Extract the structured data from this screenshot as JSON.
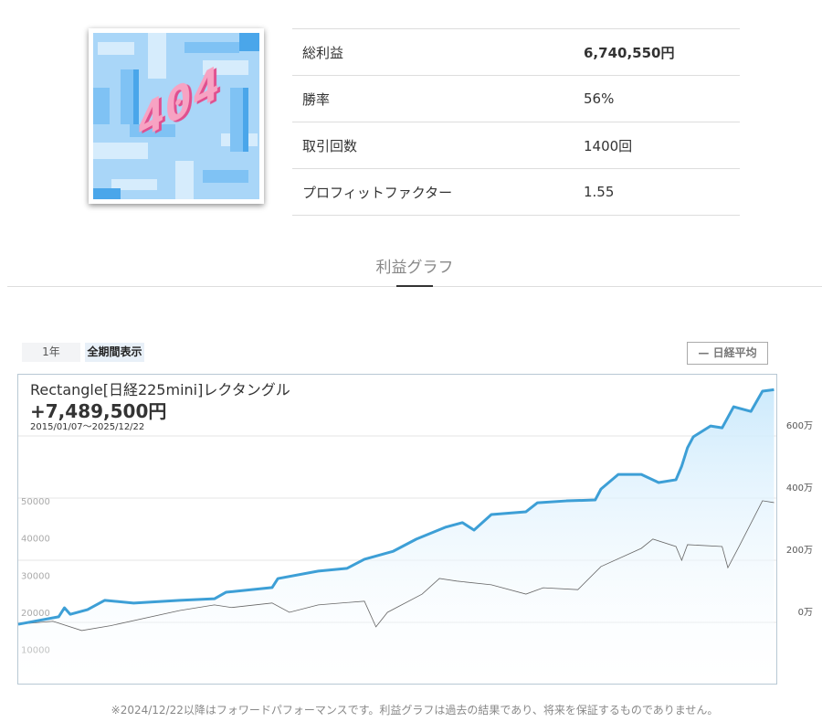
{
  "thumbnail": {
    "logo_text": "404",
    "colors": {
      "bg": "#a9d6f8",
      "block_light": "#d6ecfc",
      "block_mid": "#7fc2f4",
      "block_dark": "#4aa6ea",
      "pink": "#e0508f",
      "pink_light": "#f7a3c3"
    }
  },
  "stats": [
    {
      "label": "総利益",
      "value": "6,740,550円",
      "bold": true
    },
    {
      "label": "勝率",
      "value": "56%"
    },
    {
      "label": "取引回数",
      "value": "1400回"
    },
    {
      "label": "プロフィットファクター",
      "value": "1.55"
    }
  ],
  "section_title": "利益グラフ",
  "tabs": [
    {
      "label": "1年",
      "active": false
    },
    {
      "label": "全期間表示",
      "active": true
    }
  ],
  "legend_toggle": "— 日経平均",
  "chart_header": {
    "title": "Rectangle[日経225mini]レクタングル",
    "total": "+7,489,500円",
    "range": "2015/01/07～2025/12/22"
  },
  "chart_data": {
    "type": "area",
    "grid": true,
    "right_axis": {
      "ticks": [
        0,
        200,
        400,
        600
      ],
      "labels": [
        "0万",
        "200万",
        "400万",
        "600万"
      ]
    },
    "left_axis": {
      "ticks": [
        10000,
        20000,
        30000,
        40000,
        50000
      ],
      "labels": [
        "10000",
        "20000",
        "30000",
        "40000",
        "50000"
      ]
    },
    "series": [
      {
        "axis": "right",
        "color": "#3d9fd6",
        "fill": "#cdeafc",
        "points": [
          [
            "2015-01",
            -6
          ],
          [
            "2015-08",
            18
          ],
          [
            "2015-09",
            47
          ],
          [
            "2015-10",
            26
          ],
          [
            "2016-01",
            41
          ],
          [
            "2016-04",
            71
          ],
          [
            "2016-09",
            62
          ],
          [
            "2017-05",
            71
          ],
          [
            "2017-11",
            76
          ],
          [
            "2018-01",
            97
          ],
          [
            "2018-09",
            112
          ],
          [
            "2018-10",
            141
          ],
          [
            "2019-05",
            165
          ],
          [
            "2019-10",
            174
          ],
          [
            "2020-01",
            203
          ],
          [
            "2020-06",
            229
          ],
          [
            "2020-10",
            268
          ],
          [
            "2021-03",
            306
          ],
          [
            "2021-06",
            321
          ],
          [
            "2021-08",
            297
          ],
          [
            "2021-11",
            347
          ],
          [
            "2022-05",
            356
          ],
          [
            "2022-07",
            385
          ],
          [
            "2022-12",
            391
          ],
          [
            "2023-05",
            394
          ],
          [
            "2023-06",
            429
          ],
          [
            "2023-09",
            476
          ],
          [
            "2024-01",
            476
          ],
          [
            "2024-04",
            450
          ],
          [
            "2024-07",
            459
          ],
          [
            "2024-08",
            503
          ],
          [
            "2024-09",
            562
          ],
          [
            "2024-10",
            597
          ],
          [
            "2025-01",
            632
          ],
          [
            "2025-03",
            626
          ],
          [
            "2025-05",
            694
          ],
          [
            "2025-08",
            679
          ],
          [
            "2025-10",
            744
          ],
          [
            "2025-12",
            749
          ]
        ]
      },
      {
        "name": "日経平均",
        "axis": "left",
        "color": "#666666",
        "points": [
          [
            "2015-01",
            16800
          ],
          [
            "2015-07",
            17600
          ],
          [
            "2015-12",
            15100
          ],
          [
            "2016-05",
            16400
          ],
          [
            "2017-05",
            20500
          ],
          [
            "2017-11",
            22000
          ],
          [
            "2018-02",
            21300
          ],
          [
            "2018-09",
            22500
          ],
          [
            "2018-12",
            20000
          ],
          [
            "2019-05",
            22000
          ],
          [
            "2020-01",
            23000
          ],
          [
            "2020-03",
            16100
          ],
          [
            "2020-05",
            20000
          ],
          [
            "2020-11",
            24900
          ],
          [
            "2021-02",
            29100
          ],
          [
            "2021-05",
            28400
          ],
          [
            "2021-11",
            27400
          ],
          [
            "2022-05",
            24900
          ],
          [
            "2022-08",
            26600
          ],
          [
            "2023-02",
            26100
          ],
          [
            "2023-06",
            32300
          ],
          [
            "2024-01",
            37200
          ],
          [
            "2024-03",
            39700
          ],
          [
            "2024-07",
            37700
          ],
          [
            "2024-08",
            34000
          ],
          [
            "2024-09",
            38200
          ],
          [
            "2025-03",
            37700
          ],
          [
            "2025-04",
            32000
          ],
          [
            "2025-06",
            37900
          ],
          [
            "2025-10",
            50000
          ],
          [
            "2025-12",
            49500
          ]
        ]
      }
    ]
  },
  "note": "※2024/12/22以降はフォワードパフォーマンスです。利益グラフは過去の結果であり、将来を保証するものでありません。"
}
